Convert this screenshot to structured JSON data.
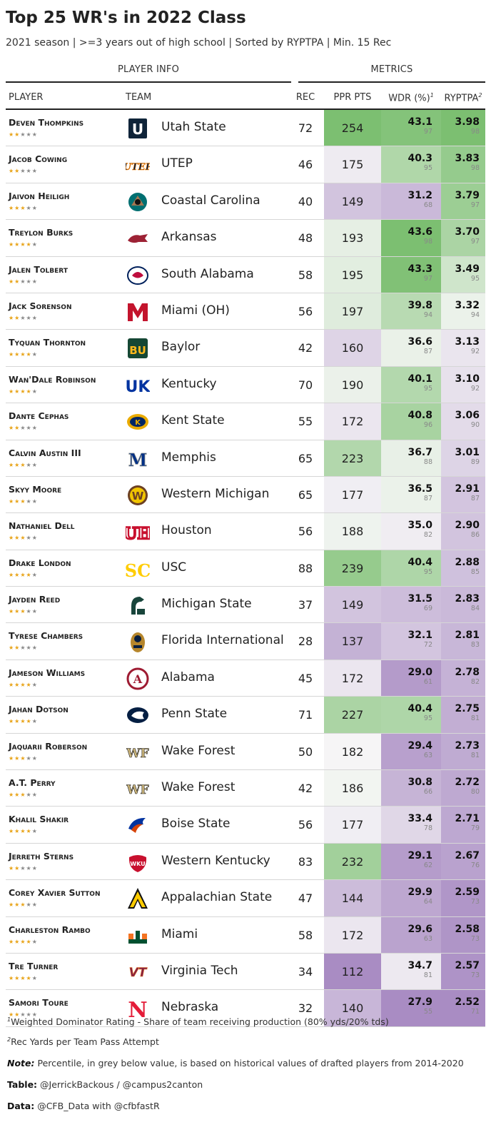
{
  "title": "Top 25 WR's in 2022 Class",
  "subtitle": "2021 season | >=3 years out of high school | Sorted by RYPTPA | Min. 15 Rec",
  "spanners": {
    "player_info": "PLAYER INFO",
    "metrics": "METRICS"
  },
  "columns": {
    "player": "PLAYER",
    "team": "TEAM",
    "rec": "REC",
    "ppr": "PPR PTS",
    "wdr": "WDR (%)",
    "wdr_sup": "1",
    "ryptpa": "RYPTPA",
    "ryptpa_sup": "2"
  },
  "footnotes": {
    "fn1_sup": "1",
    "fn1": "Weighted Dominator Rating - Share of team receiving production (80% yds/20% tds)",
    "fn2_sup": "2",
    "fn2": "Rec Yards per Team Pass Attempt",
    "note_label": "Note:",
    "note": " Percentile, in grey below value, is based on historical values of drafted players from 2014-2020",
    "table_label": "Table:",
    "table": " @JerrickBackous / @campus2canton",
    "data_label": "Data:",
    "data": " @CFB_Data with @cfbfastR"
  },
  "colors": {
    "star_on": "#e8a317",
    "star_off": "#888888",
    "scale_low": "#a98cc3",
    "scale_mid": "#f7f7f7",
    "scale_high": "#7cbf71"
  },
  "chart_data": {
    "type": "table",
    "rows": [
      {
        "player": "Deven Thompkins",
        "stars": 2,
        "team": "Utah State",
        "logo": "utah-state-logo",
        "rec": 72,
        "ppr": 254,
        "wdr": "43.1",
        "wdr_pct": 97,
        "ryptpa": "3.98",
        "ryptpa_pct": 98
      },
      {
        "player": "Jacob Cowing",
        "stars": 2,
        "team": "UTEP",
        "logo": "utep-logo",
        "rec": 46,
        "ppr": 175,
        "wdr": "40.3",
        "wdr_pct": 95,
        "ryptpa": "3.83",
        "ryptpa_pct": 98
      },
      {
        "player": "Jaivon Heiligh",
        "stars": 3,
        "team": "Coastal Carolina",
        "logo": "coastal-carolina-logo",
        "rec": 40,
        "ppr": 149,
        "wdr": "31.2",
        "wdr_pct": 68,
        "ryptpa": "3.79",
        "ryptpa_pct": 97
      },
      {
        "player": "Treylon Burks",
        "stars": 4,
        "team": "Arkansas",
        "logo": "arkansas-logo",
        "rec": 48,
        "ppr": 193,
        "wdr": "43.6",
        "wdr_pct": 98,
        "ryptpa": "3.70",
        "ryptpa_pct": 97
      },
      {
        "player": "Jalen Tolbert",
        "stars": 2,
        "team": "South Alabama",
        "logo": "south-alabama-logo",
        "rec": 58,
        "ppr": 195,
        "wdr": "43.3",
        "wdr_pct": 97,
        "ryptpa": "3.49",
        "ryptpa_pct": 95
      },
      {
        "player": "Jack Sorenson",
        "stars": 2,
        "team": "Miami (OH)",
        "logo": "miami-oh-logo",
        "rec": 56,
        "ppr": 197,
        "wdr": "39.8",
        "wdr_pct": 94,
        "ryptpa": "3.32",
        "ryptpa_pct": 94
      },
      {
        "player": "Tyquan Thornton",
        "stars": 4,
        "team": "Baylor",
        "logo": "baylor-logo",
        "rec": 42,
        "ppr": 160,
        "wdr": "36.6",
        "wdr_pct": 87,
        "ryptpa": "3.13",
        "ryptpa_pct": 92
      },
      {
        "player": "Wan'Dale Robinson",
        "stars": 4,
        "team": "Kentucky",
        "logo": "kentucky-logo",
        "rec": 70,
        "ppr": 190,
        "wdr": "40.1",
        "wdr_pct": 95,
        "ryptpa": "3.10",
        "ryptpa_pct": 92
      },
      {
        "player": "Dante Cephas",
        "stars": 2,
        "team": "Kent State",
        "logo": "kent-state-logo",
        "rec": 55,
        "ppr": 172,
        "wdr": "40.8",
        "wdr_pct": 96,
        "ryptpa": "3.06",
        "ryptpa_pct": 90
      },
      {
        "player": "Calvin Austin III",
        "stars": 3,
        "team": "Memphis",
        "logo": "memphis-logo",
        "rec": 65,
        "ppr": 223,
        "wdr": "36.7",
        "wdr_pct": 88,
        "ryptpa": "3.01",
        "ryptpa_pct": 89
      },
      {
        "player": "Skyy Moore",
        "stars": 3,
        "team": "Western Michigan",
        "logo": "western-michigan-logo",
        "rec": 65,
        "ppr": 177,
        "wdr": "36.5",
        "wdr_pct": 87,
        "ryptpa": "2.91",
        "ryptpa_pct": 87
      },
      {
        "player": "Nathaniel Dell",
        "stars": 3,
        "team": "Houston",
        "logo": "houston-logo",
        "rec": 56,
        "ppr": 188,
        "wdr": "35.0",
        "wdr_pct": 82,
        "ryptpa": "2.90",
        "ryptpa_pct": 86
      },
      {
        "player": "Drake London",
        "stars": 4,
        "team": "USC",
        "logo": "usc-logo",
        "rec": 88,
        "ppr": 239,
        "wdr": "40.4",
        "wdr_pct": 95,
        "ryptpa": "2.88",
        "ryptpa_pct": 85
      },
      {
        "player": "Jayden Reed",
        "stars": 3,
        "team": "Michigan State",
        "logo": "michigan-state-logo",
        "rec": 37,
        "ppr": 149,
        "wdr": "31.5",
        "wdr_pct": 69,
        "ryptpa": "2.83",
        "ryptpa_pct": 84
      },
      {
        "player": "Tyrese Chambers",
        "stars": 2,
        "team": "Florida International",
        "logo": "fiu-logo",
        "rec": 28,
        "ppr": 137,
        "wdr": "32.1",
        "wdr_pct": 72,
        "ryptpa": "2.81",
        "ryptpa_pct": 83
      },
      {
        "player": "Jameson Williams",
        "stars": 4,
        "team": "Alabama",
        "logo": "alabama-logo",
        "rec": 45,
        "ppr": 172,
        "wdr": "29.0",
        "wdr_pct": 61,
        "ryptpa": "2.78",
        "ryptpa_pct": 82
      },
      {
        "player": "Jahan Dotson",
        "stars": 4,
        "team": "Penn State",
        "logo": "penn-state-logo",
        "rec": 71,
        "ppr": 227,
        "wdr": "40.4",
        "wdr_pct": 95,
        "ryptpa": "2.75",
        "ryptpa_pct": 81
      },
      {
        "player": "Jaquarii Roberson",
        "stars": 3,
        "team": "Wake Forest",
        "logo": "wake-forest-logo",
        "rec": 50,
        "ppr": 182,
        "wdr": "29.4",
        "wdr_pct": 63,
        "ryptpa": "2.73",
        "ryptpa_pct": 81
      },
      {
        "player": "A.T. Perry",
        "stars": 3,
        "team": "Wake Forest",
        "logo": "wake-forest-logo",
        "rec": 42,
        "ppr": 186,
        "wdr": "30.8",
        "wdr_pct": 66,
        "ryptpa": "2.72",
        "ryptpa_pct": 80
      },
      {
        "player": "Khalil Shakir",
        "stars": 4,
        "team": "Boise State",
        "logo": "boise-state-logo",
        "rec": 56,
        "ppr": 177,
        "wdr": "33.4",
        "wdr_pct": 78,
        "ryptpa": "2.71",
        "ryptpa_pct": 79
      },
      {
        "player": "Jerreth Sterns",
        "stars": 2,
        "team": "Western Kentucky",
        "logo": "western-kentucky-logo",
        "rec": 83,
        "ppr": 232,
        "wdr": "29.1",
        "wdr_pct": 62,
        "ryptpa": "2.67",
        "ryptpa_pct": 76
      },
      {
        "player": "Corey Xavier Sutton",
        "stars": 3,
        "team": "Appalachian State",
        "logo": "appalachian-state-logo",
        "rec": 47,
        "ppr": 144,
        "wdr": "29.9",
        "wdr_pct": 64,
        "ryptpa": "2.59",
        "ryptpa_pct": 73
      },
      {
        "player": "Charleston Rambo",
        "stars": 4,
        "team": "Miami",
        "logo": "miami-logo",
        "rec": 58,
        "ppr": 172,
        "wdr": "29.6",
        "wdr_pct": 63,
        "ryptpa": "2.58",
        "ryptpa_pct": 73
      },
      {
        "player": "Tre Turner",
        "stars": 4,
        "team": "Virginia Tech",
        "logo": "virginia-tech-logo",
        "rec": 34,
        "ppr": 112,
        "wdr": "34.7",
        "wdr_pct": 81,
        "ryptpa": "2.57",
        "ryptpa_pct": 73
      },
      {
        "player": "Samori Toure",
        "stars": 2,
        "team": "Nebraska",
        "logo": "nebraska-logo",
        "rec": 32,
        "ppr": 140,
        "wdr": "27.9",
        "wdr_pct": 55,
        "ryptpa": "2.52",
        "ryptpa_pct": 71
      }
    ]
  }
}
